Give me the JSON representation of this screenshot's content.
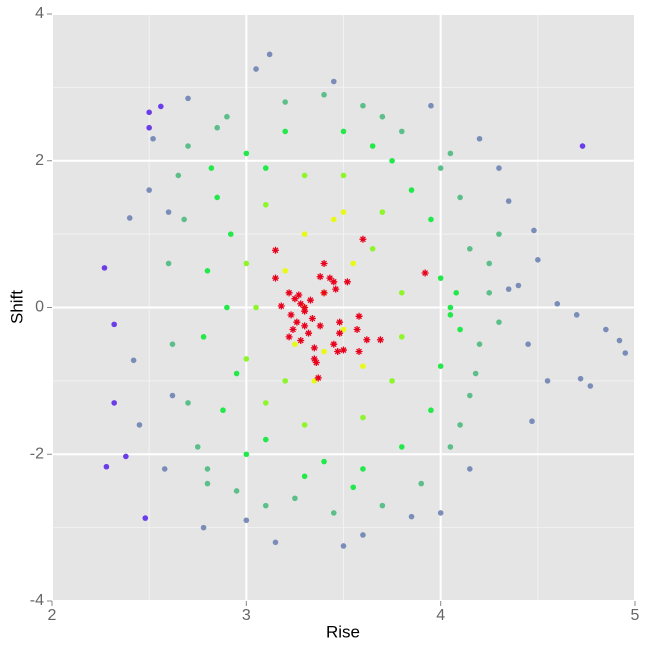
{
  "chart_data": {
    "type": "scatter",
    "x_label": "Rise",
    "y_label": "Shift",
    "xlim": [
      2,
      5
    ],
    "ylim": [
      -4,
      4
    ],
    "xticks": [
      2,
      3,
      4,
      5
    ],
    "yticks": [
      -4,
      -2,
      0,
      2,
      4
    ],
    "grid": true,
    "minor_grid": true,
    "series": [
      {
        "color": "#6a3de8",
        "marker": "circle",
        "x": [
          2.27,
          2.28,
          2.32,
          2.48,
          2.5,
          2.5,
          4.73,
          2.38,
          2.56,
          2.32
        ],
        "y": [
          0.54,
          -2.17,
          -1.3,
          -2.87,
          2.45,
          2.66,
          2.2,
          -2.03,
          2.74,
          -0.23
        ]
      },
      {
        "color": "#7a8cb8",
        "marker": "circle",
        "x": [
          2.4,
          2.42,
          2.45,
          2.52,
          2.6,
          2.58,
          4.35,
          4.4,
          4.5,
          4.7,
          4.72,
          4.77,
          4.85,
          4.95,
          4.92,
          4.47,
          4.55,
          4.6,
          3.12,
          3.05,
          3.45,
          3.85,
          3.5,
          3.0,
          2.78,
          4.2,
          4.15,
          4.35,
          4.48,
          2.7,
          3.95,
          4.3,
          2.5,
          2.62,
          4.45,
          3.6,
          3.15,
          4.0
        ],
        "y": [
          1.22,
          -0.72,
          -1.6,
          2.3,
          1.3,
          -2.2,
          0.25,
          0.3,
          0.65,
          -0.1,
          -0.97,
          -1.07,
          -0.3,
          -0.62,
          -0.45,
          -1.55,
          -1.0,
          0.05,
          3.45,
          3.25,
          3.08,
          -2.85,
          -3.25,
          -2.9,
          -3.0,
          2.3,
          -2.2,
          1.45,
          1.05,
          2.85,
          2.75,
          1.9,
          1.6,
          -1.2,
          -0.5,
          -3.1,
          -3.2,
          -2.8
        ]
      },
      {
        "color": "#5cbf8a",
        "marker": "circle",
        "x": [
          2.65,
          2.7,
          2.75,
          2.8,
          2.9,
          2.95,
          3.2,
          3.4,
          3.6,
          3.8,
          4.0,
          4.1,
          4.15,
          4.25,
          4.2,
          4.15,
          4.05,
          3.9,
          3.7,
          3.45,
          3.25,
          2.6,
          2.62,
          2.68,
          2.7,
          4.3,
          4.25,
          4.3,
          4.18,
          3.1,
          2.85,
          3.7,
          4.05,
          2.8,
          4.1
        ],
        "y": [
          1.8,
          2.2,
          -1.9,
          -2.4,
          2.6,
          -2.5,
          2.8,
          2.9,
          2.75,
          2.4,
          1.9,
          1.5,
          0.8,
          0.2,
          -0.5,
          -1.2,
          -1.9,
          -2.4,
          -2.7,
          -2.8,
          -2.6,
          0.6,
          -0.5,
          1.2,
          -1.3,
          -0.2,
          0.6,
          1.0,
          -0.9,
          -2.7,
          2.45,
          2.6,
          2.1,
          -2.2,
          -1.6
        ]
      },
      {
        "color": "#22e84a",
        "marker": "circle",
        "x": [
          2.8,
          2.78,
          2.85,
          2.88,
          3.0,
          3.0,
          3.2,
          3.3,
          3.5,
          3.6,
          3.75,
          3.8,
          3.95,
          4.0,
          4.05,
          4.0,
          3.95,
          2.9,
          2.95,
          2.92,
          3.1,
          3.1,
          3.4,
          3.65,
          4.08,
          4.05,
          4.1,
          3.85,
          2.82,
          3.55
        ],
        "y": [
          0.5,
          -0.4,
          1.5,
          -1.4,
          2.1,
          -2.0,
          2.4,
          -2.3,
          2.4,
          -2.2,
          2.0,
          -1.9,
          1.2,
          0.4,
          -0.1,
          -0.8,
          -1.4,
          0.0,
          -0.9,
          1.0,
          -1.8,
          1.9,
          -2.1,
          2.2,
          0.2,
          0.0,
          -0.3,
          1.6,
          1.9,
          -2.45
        ]
      },
      {
        "color": "#8ef52a",
        "marker": "circle",
        "x": [
          3.0,
          3.0,
          3.1,
          3.1,
          3.3,
          3.3,
          3.5,
          3.6,
          3.7,
          3.75,
          3.8,
          3.8,
          3.05,
          3.2,
          3.65
        ],
        "y": [
          0.6,
          -0.7,
          1.4,
          -1.3,
          1.8,
          -1.6,
          1.8,
          -1.5,
          1.3,
          -1.0,
          0.2,
          -0.4,
          0.0,
          -1.0,
          0.8
        ]
      },
      {
        "color": "#e8fa14",
        "marker": "circle",
        "x": [
          3.2,
          3.25,
          3.3,
          3.35,
          3.4,
          3.45,
          3.5,
          3.55,
          3.6,
          3.3,
          3.4,
          3.5
        ],
        "y": [
          0.5,
          -0.5,
          1.0,
          -1.0,
          0.2,
          1.2,
          -0.3,
          0.6,
          -0.8,
          0.0,
          -0.6,
          1.3
        ]
      },
      {
        "color": "#e8001c",
        "marker": "asterisk",
        "x": [
          3.15,
          3.15,
          3.18,
          3.22,
          3.25,
          3.23,
          3.26,
          3.28,
          3.3,
          3.24,
          3.22,
          3.28,
          3.32,
          3.3,
          3.3,
          3.33,
          3.35,
          3.35,
          3.36,
          3.37,
          3.38,
          3.38,
          3.4,
          3.4,
          3.43,
          3.45,
          3.46,
          3.48,
          3.48,
          3.45,
          3.47,
          3.5,
          3.52,
          3.57,
          3.58,
          3.58,
          3.6,
          3.62,
          3.69,
          3.92,
          3.27,
          3.34
        ],
        "y": [
          0.78,
          0.4,
          0.02,
          0.2,
          0.12,
          -0.1,
          -0.2,
          0.05,
          -0.05,
          -0.3,
          -0.4,
          -0.45,
          -0.35,
          -0.25,
          0.0,
          0.1,
          -0.55,
          -0.7,
          -0.75,
          -0.96,
          -0.25,
          0.42,
          0.6,
          0.2,
          0.4,
          0.35,
          0.25,
          -0.2,
          -0.35,
          -0.5,
          -0.6,
          -0.58,
          0.35,
          -0.3,
          -0.12,
          -0.6,
          0.93,
          -0.44,
          -0.44,
          0.47,
          0.17,
          -0.15
        ]
      }
    ]
  }
}
